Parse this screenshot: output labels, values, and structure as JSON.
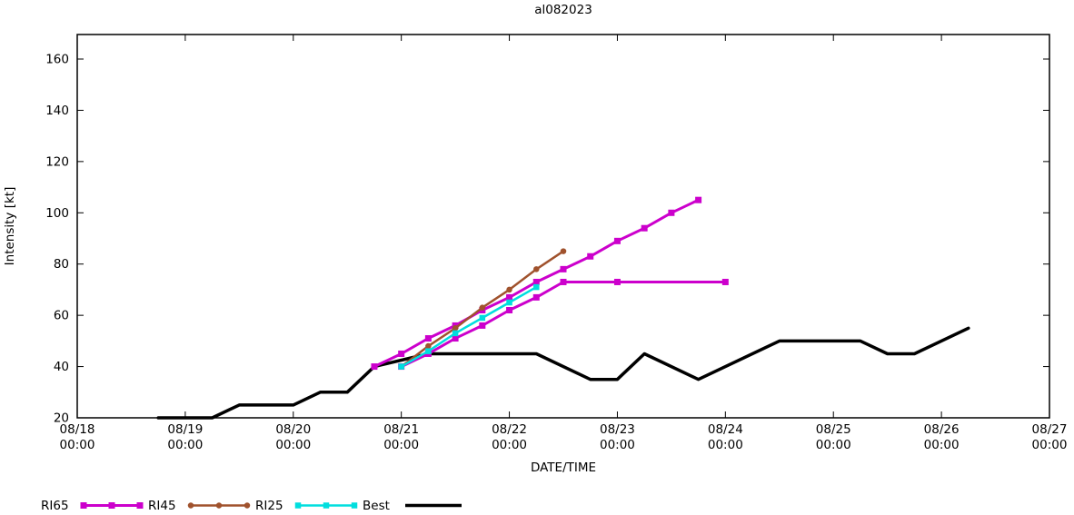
{
  "title": "al082023",
  "chart_data": {
    "type": "line",
    "title": "al082023",
    "xlabel": "DATE/TIME",
    "ylabel": "Intensity [kt]",
    "xlim": [
      "08/18 00:00",
      "08/27 00:00"
    ],
    "ylim": [
      20,
      169.57
    ],
    "yticks": [
      20,
      40,
      60,
      80,
      100,
      120,
      140,
      160
    ],
    "xticks": [
      {
        "t": "08/18 00:00",
        "date": "08/18",
        "time": "00:00"
      },
      {
        "t": "08/19 00:00",
        "date": "08/19",
        "time": "00:00"
      },
      {
        "t": "08/20 00:00",
        "date": "08/20",
        "time": "00:00"
      },
      {
        "t": "08/21 00:00",
        "date": "08/21",
        "time": "00:00"
      },
      {
        "t": "08/22 00:00",
        "date": "08/22",
        "time": "00:00"
      },
      {
        "t": "08/23 00:00",
        "date": "08/23",
        "time": "00:00"
      },
      {
        "t": "08/24 00:00",
        "date": "08/24",
        "time": "00:00"
      },
      {
        "t": "08/25 00:00",
        "date": "08/25",
        "time": "00:00"
      },
      {
        "t": "08/26 00:00",
        "date": "08/26",
        "time": "00:00"
      },
      {
        "t": "08/27 00:00",
        "date": "08/27",
        "time": "00:00"
      }
    ],
    "grid": false,
    "legend_position": "bottom-left",
    "series": [
      {
        "id": "best",
        "name": "Best",
        "color": "#000000",
        "marker": "none",
        "marker_size": 0,
        "line_width": 3.5,
        "points": [
          [
            "08/18 18:00",
            20
          ],
          [
            "08/19 06:00",
            20
          ],
          [
            "08/19 12:00",
            25
          ],
          [
            "08/20 00:00",
            25
          ],
          [
            "08/20 06:00",
            30
          ],
          [
            "08/20 12:00",
            30
          ],
          [
            "08/20 18:00",
            40
          ],
          [
            "08/21 06:00",
            45
          ],
          [
            "08/22 06:00",
            45
          ],
          [
            "08/22 18:00",
            35
          ],
          [
            "08/23 00:00",
            35
          ],
          [
            "08/23 06:00",
            45
          ],
          [
            "08/23 18:00",
            35
          ],
          [
            "08/24 12:00",
            50
          ],
          [
            "08/25 06:00",
            50
          ],
          [
            "08/25 12:00",
            45
          ],
          [
            "08/25 18:00",
            45
          ],
          [
            "08/26 06:00",
            55
          ]
        ]
      },
      {
        "id": "ri65-a",
        "name": "RI65",
        "color": "#cc00cc",
        "marker": "square",
        "marker_size": 7,
        "line_width": 3,
        "points": [
          [
            "08/20 18:00",
            40
          ],
          [
            "08/21 00:00",
            45
          ],
          [
            "08/21 06:00",
            51
          ],
          [
            "08/21 12:00",
            56
          ],
          [
            "08/21 18:00",
            62
          ],
          [
            "08/22 00:00",
            67
          ],
          [
            "08/22 06:00",
            73
          ],
          [
            "08/22 12:00",
            78
          ],
          [
            "08/22 18:00",
            83
          ],
          [
            "08/23 00:00",
            89
          ],
          [
            "08/23 06:00",
            94
          ],
          [
            "08/23 12:00",
            100
          ],
          [
            "08/23 18:00",
            105
          ]
        ]
      },
      {
        "id": "ri65-b",
        "name": "RI65",
        "color": "#cc00cc",
        "marker": "square",
        "marker_size": 7,
        "line_width": 3,
        "points": [
          [
            "08/21 00:00",
            40
          ],
          [
            "08/21 06:00",
            45
          ],
          [
            "08/21 12:00",
            51
          ],
          [
            "08/21 18:00",
            56
          ],
          [
            "08/22 00:00",
            62
          ],
          [
            "08/22 06:00",
            67
          ],
          [
            "08/22 12:00",
            73
          ],
          [
            "08/23 00:00",
            73
          ],
          [
            "08/24 00:00",
            73
          ]
        ]
      },
      {
        "id": "ri45",
        "name": "RI45",
        "color": "#a0522d",
        "marker": "circle",
        "marker_size": 6.5,
        "line_width": 2.5,
        "points": [
          [
            "08/21 00:00",
            40
          ],
          [
            "08/21 06:00",
            48
          ],
          [
            "08/21 12:00",
            55
          ],
          [
            "08/21 18:00",
            63
          ],
          [
            "08/22 00:00",
            70
          ],
          [
            "08/22 06:00",
            78
          ],
          [
            "08/22 12:00",
            85
          ]
        ]
      },
      {
        "id": "ri25",
        "name": "RI25",
        "color": "#00dede",
        "marker": "square",
        "marker_size": 6.5,
        "line_width": 2.5,
        "points": [
          [
            "08/21 00:00",
            40
          ],
          [
            "08/21 06:00",
            46
          ],
          [
            "08/21 12:00",
            53
          ],
          [
            "08/21 18:00",
            59
          ],
          [
            "08/22 00:00",
            65
          ],
          [
            "08/22 06:00",
            71
          ]
        ]
      }
    ],
    "legend": [
      {
        "label": "RI65",
        "color": "#cc00cc",
        "marker": "square",
        "marker_size": 7,
        "line_width": 3
      },
      {
        "label": "RI45",
        "color": "#a0522d",
        "marker": "circle",
        "marker_size": 6.5,
        "line_width": 2.5
      },
      {
        "label": "RI25",
        "color": "#00dede",
        "marker": "square",
        "marker_size": 6.5,
        "line_width": 2.5
      },
      {
        "label": "Best",
        "color": "#000000",
        "marker": "none",
        "marker_size": 0,
        "line_width": 3.5
      }
    ]
  }
}
